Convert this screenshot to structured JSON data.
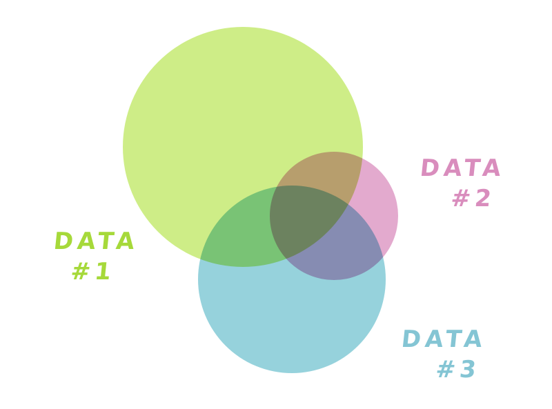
{
  "diagram": {
    "type": "venn",
    "sets": [
      {
        "id": "data1",
        "line1": "DATA",
        "line2": "#1",
        "color": "#bde75f",
        "label_color": "#a6d93a"
      },
      {
        "id": "data2",
        "line1": "DATA",
        "line2": "#2",
        "color": "#d98dbd",
        "label_color": "#d98dbd"
      },
      {
        "id": "data3",
        "line1": "DATA",
        "line2": "#3",
        "color": "#84cad6",
        "label_color": "#84c5d4"
      }
    ]
  }
}
